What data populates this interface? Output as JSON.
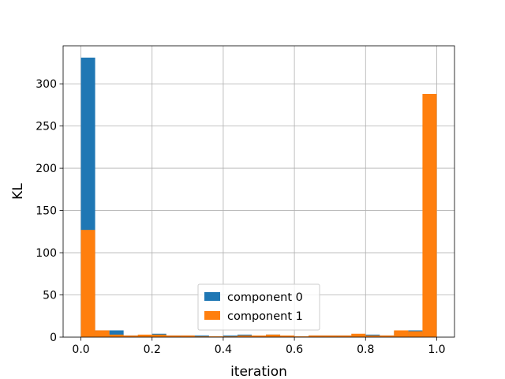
{
  "chart_data": {
    "type": "bar",
    "subtype": "histogram",
    "xlabel": "iteration",
    "ylabel": "KL",
    "xlim": [
      -0.05,
      1.05
    ],
    "ylim": [
      0,
      345
    ],
    "xticks": [
      0.0,
      0.2,
      0.4,
      0.6,
      0.8,
      1.0
    ],
    "xtick_labels": [
      "0.0",
      "0.2",
      "0.4",
      "0.6",
      "0.8",
      "1.0"
    ],
    "yticks": [
      0,
      50,
      100,
      150,
      200,
      250,
      300
    ],
    "ytick_labels": [
      "0",
      "50",
      "100",
      "150",
      "200",
      "250",
      "300"
    ],
    "grid": true,
    "legend": {
      "placement": "lower-center"
    },
    "stacked": false,
    "bins": {
      "count": 25,
      "start": 0.0,
      "end": 1.0,
      "edges": [
        0.0,
        0.04,
        0.08,
        0.12,
        0.16,
        0.2,
        0.24,
        0.28,
        0.32,
        0.36,
        0.4,
        0.44,
        0.48,
        0.52,
        0.56,
        0.6,
        0.64,
        0.68,
        0.72,
        0.76,
        0.8,
        0.84,
        0.88,
        0.92,
        0.96,
        1.0
      ]
    },
    "series": [
      {
        "name": "component 0",
        "color": "#1f77b4",
        "values": [
          331,
          8,
          8,
          2,
          2,
          4,
          2,
          2,
          2,
          1,
          2,
          3,
          1,
          3,
          1,
          1,
          2,
          2,
          2,
          2,
          3,
          2,
          7,
          8,
          2
        ]
      },
      {
        "name": "component 1",
        "color": "#ff7f0e",
        "values": [
          127,
          8,
          3,
          2,
          3,
          3,
          2,
          2,
          1,
          1,
          1,
          2,
          2,
          3,
          2,
          1,
          2,
          2,
          2,
          4,
          2,
          2,
          8,
          7,
          288
        ]
      }
    ]
  }
}
